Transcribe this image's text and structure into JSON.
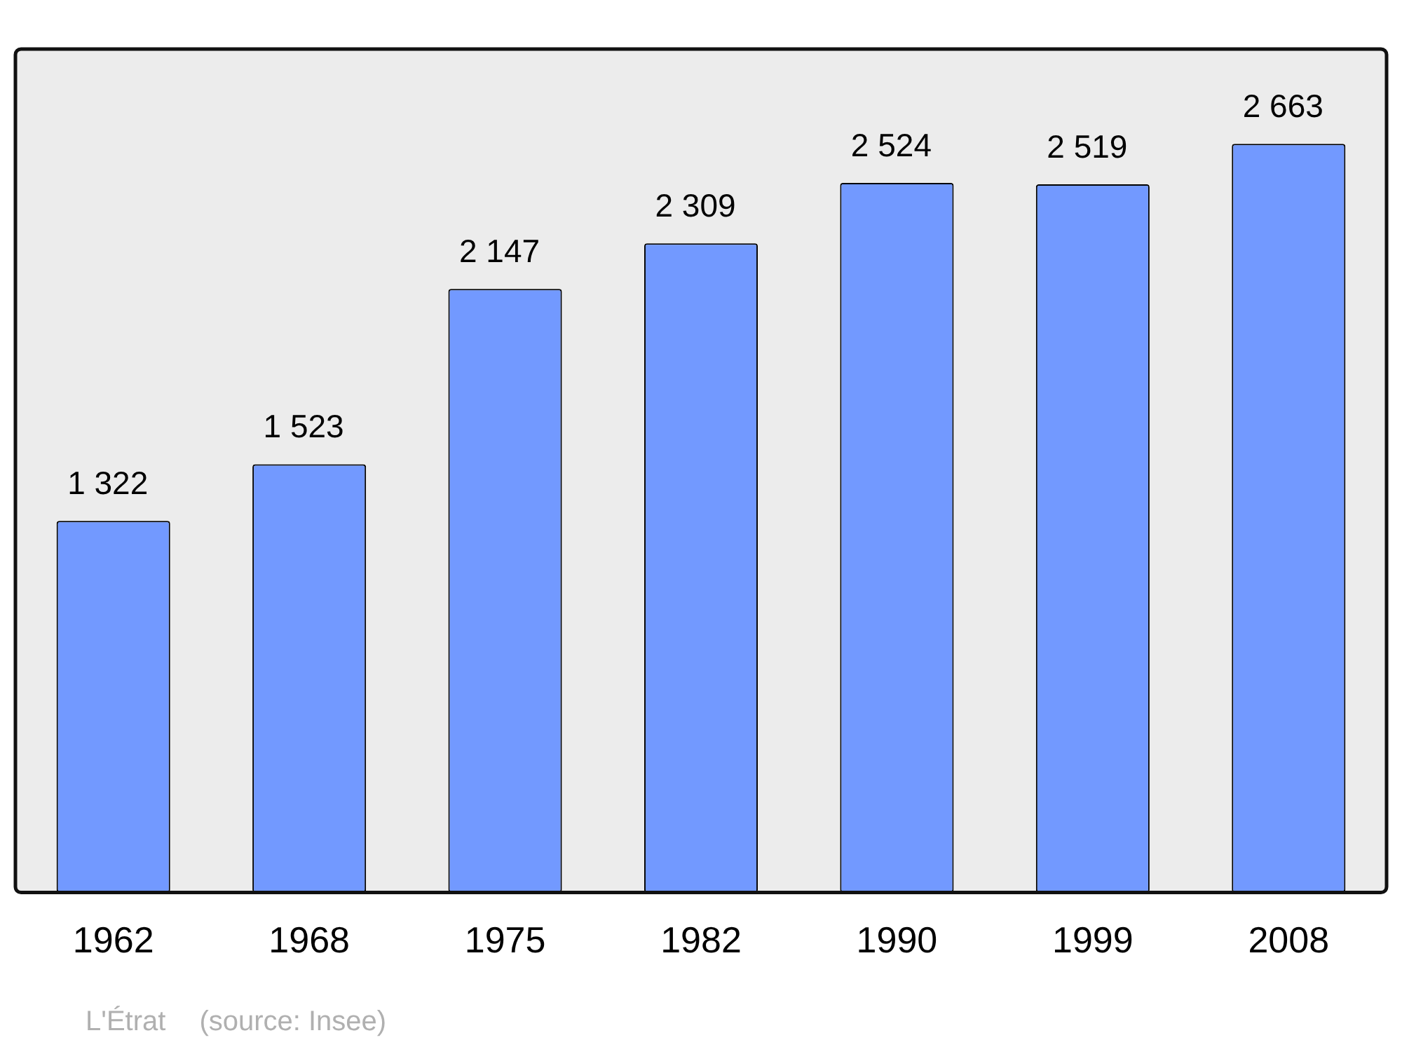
{
  "chart_data": {
    "type": "bar",
    "categories": [
      "1962",
      "1968",
      "1975",
      "1982",
      "1990",
      "1999",
      "2008"
    ],
    "values": [
      1322,
      1523,
      2147,
      2309,
      2524,
      2519,
      2663
    ],
    "value_labels": [
      "1 322",
      "1 523",
      "2 147",
      "2 309",
      "2 524",
      "2 519",
      "2 663"
    ],
    "color": "#7299ff",
    "grid": false,
    "legend": false,
    "annotations": [
      "L'Étrat",
      "(source: Insee)"
    ]
  }
}
